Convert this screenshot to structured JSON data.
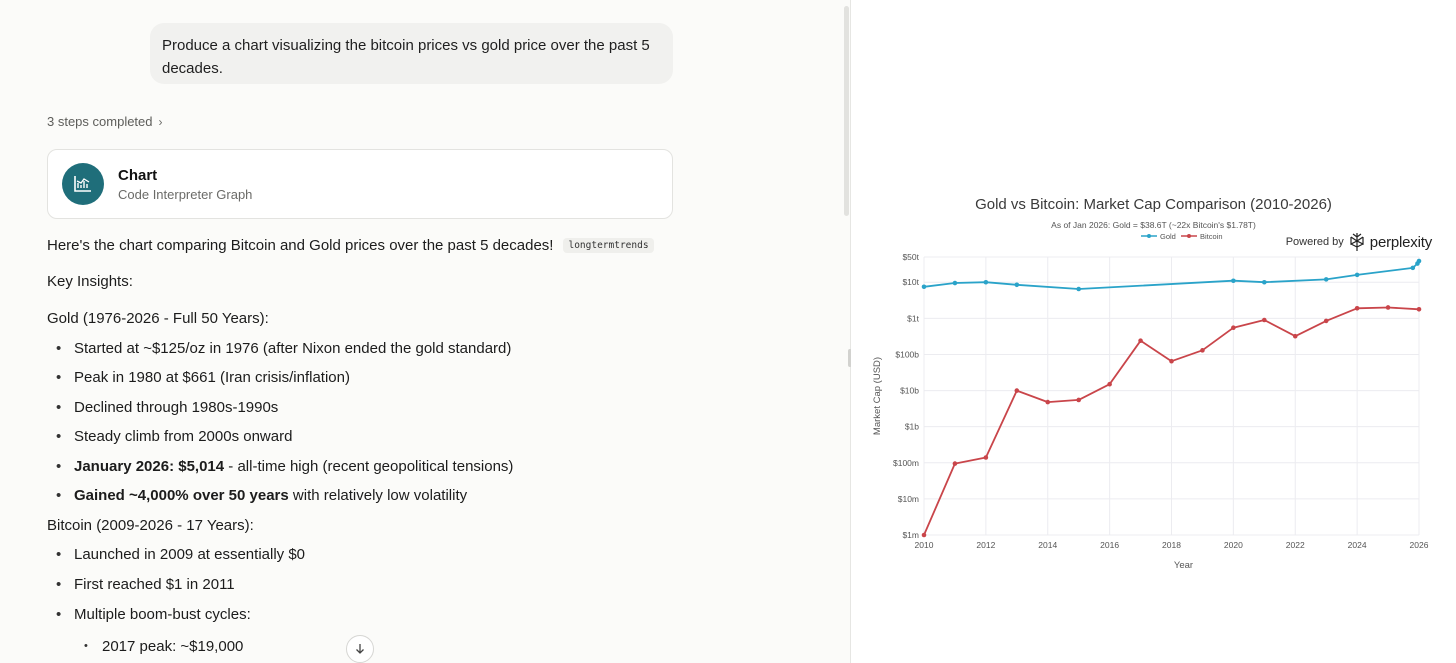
{
  "conversation": {
    "user_message": "Produce a chart visualizing the bitcoin prices vs gold price over the past 5 decades.",
    "steps_label": "3 steps completed",
    "tool_card": {
      "title": "Chart",
      "subtitle": "Code Interpreter Graph"
    },
    "intro_text": "Here's the chart comparing Bitcoin and Gold prices over the past 5 decades!",
    "intro_tag": "longtermtrends",
    "insights_heading": "Key Insights:",
    "gold_heading": "Gold (1976-2026 - Full 50 Years):",
    "gold_points": [
      "Started at ~$125/oz in 1976 (after Nixon ended the gold standard)",
      "Peak in 1980 at $661 (Iran crisis/inflation)",
      "Declined through 1980s-1990s",
      "Steady climb from 2000s onward"
    ],
    "gold_bold_1": "January 2026: $5,014",
    "gold_rest_1": " - all-time high (recent geopolitical tensions)",
    "gold_bold_2": "Gained ~4,000% over 50 years",
    "gold_rest_2": " with relatively low volatility",
    "bitcoin_heading": "Bitcoin (2009-2026 - 17 Years):",
    "bitcoin_points": [
      "Launched in 2009 at essentially $0",
      "First reached $1 in 2011",
      "Multiple boom-bust cycles:"
    ],
    "bitcoin_subpoints": [
      "2017 peak: ~$19,000"
    ]
  },
  "colors": {
    "gold_series": "#2aa3c9",
    "bitcoin_series": "#c9454a",
    "card_icon_bg": "#1f6e7a"
  },
  "icons": {
    "card": "chart-line-icon",
    "steps": "chevron-right-icon",
    "scroll": "arrow-down-icon",
    "brand": "perplexity-logo-icon"
  },
  "powered_by": {
    "label": "Powered by",
    "brand": "perplexity"
  },
  "chart_data": {
    "type": "line",
    "title": "Gold vs Bitcoin: Market Cap Comparison (2010-2026)",
    "subtitle": "As of Jan 2026: Gold = $38.6T (~22x Bitcoin's $1.78T)",
    "xlabel": "Year",
    "ylabel": "Market Cap (USD)",
    "y_scale": "log",
    "ylim": [
      1000000,
      50000000000000
    ],
    "xlim": [
      2010,
      2026
    ],
    "x_ticks": [
      2010,
      2012,
      2014,
      2016,
      2018,
      2020,
      2022,
      2024,
      2026
    ],
    "y_ticks": [
      {
        "value": 1000000,
        "label": "$1m"
      },
      {
        "value": 10000000,
        "label": "$10m"
      },
      {
        "value": 100000000,
        "label": "$100m"
      },
      {
        "value": 1000000000,
        "label": "$1b"
      },
      {
        "value": 10000000000,
        "label": "$10b"
      },
      {
        "value": 100000000000,
        "label": "$100b"
      },
      {
        "value": 1000000000000,
        "label": "$1t"
      },
      {
        "value": 10000000000000,
        "label": "$10t"
      },
      {
        "value": 50000000000000,
        "label": "$50t"
      }
    ],
    "grid": true,
    "legend_position": "top-center",
    "series": [
      {
        "name": "Gold",
        "x": [
          2010,
          2011,
          2012,
          2013,
          2015,
          2020,
          2021,
          2023,
          2024,
          2025.8,
          2025.95,
          2026
        ],
        "y": [
          7500000000000.0,
          9500000000000.0,
          10000000000000.0,
          8500000000000.0,
          6500000000000.0,
          11000000000000.0,
          10000000000000.0,
          12000000000000.0,
          16000000000000.0,
          25000000000000.0,
          33000000000000.0,
          38600000000000.0
        ]
      },
      {
        "name": "Bitcoin",
        "x": [
          2010,
          2011,
          2012,
          2013,
          2014,
          2015,
          2016,
          2017,
          2018,
          2019,
          2020,
          2021,
          2022,
          2023,
          2024,
          2025,
          2026
        ],
        "y": [
          1000000.0,
          95000000.0,
          140000000.0,
          10000000000.0,
          4800000000.0,
          5500000000.0,
          15000000000.0,
          240000000000.0,
          65000000000.0,
          130000000000.0,
          550000000000.0,
          900000000000.0,
          320000000000.0,
          850000000000.0,
          1900000000000.0,
          2000000000000.0,
          1780000000000.0
        ]
      }
    ]
  }
}
